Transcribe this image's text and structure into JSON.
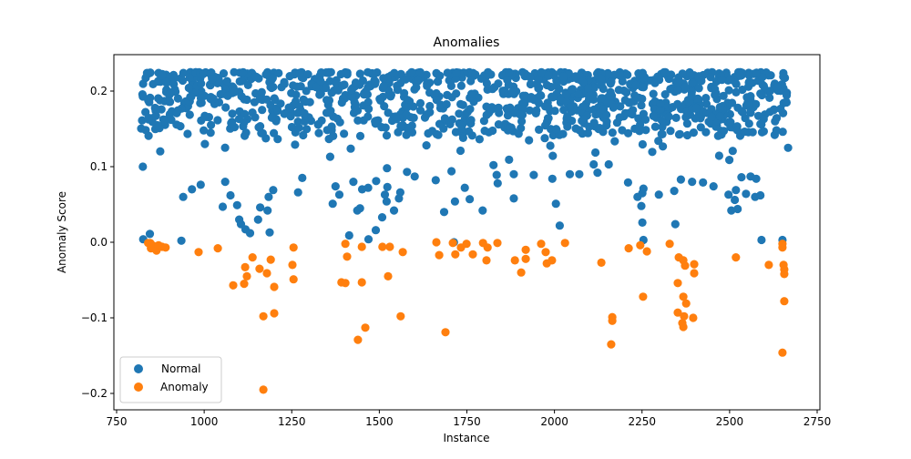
{
  "chart_data": {
    "type": "scatter",
    "title": "Anomalies",
    "xlabel": "Instance",
    "ylabel": "Anomaly Score",
    "xlim": [
      722,
      2763
    ],
    "ylim": [
      -0.221,
      0.248
    ],
    "xticks": [
      750,
      1000,
      1250,
      1500,
      1750,
      2000,
      2250,
      2500,
      2750
    ],
    "yticks": [
      -0.2,
      -0.1,
      0.0,
      0.1,
      0.2
    ],
    "ytick_labels": [
      "−0.2",
      "−0.1",
      "0.0",
      "0.1",
      "0.2"
    ],
    "grid": false,
    "legend": {
      "position": "lower left",
      "entries": [
        "Normal",
        "Anomaly"
      ]
    },
    "series": [
      {
        "name": "Normal",
        "color": "#1f77b4",
        "dense_band": {
          "x_range": [
            820,
            2665
          ],
          "y_range": [
            0.14,
            0.225
          ],
          "count": 1100,
          "seed": 7
        },
        "points": [
          [
            825,
            0.1
          ],
          [
            826,
            0.004
          ],
          [
            845,
            0.011
          ],
          [
            940,
            0.06
          ],
          [
            935,
            0.002
          ],
          [
            965,
            0.07
          ],
          [
            990,
            0.076
          ],
          [
            1002,
            0.13
          ],
          [
            1053,
            0.047
          ],
          [
            1060,
            0.08
          ],
          [
            1075,
            0.062
          ],
          [
            1094,
            0.049
          ],
          [
            1100,
            0.03
          ],
          [
            1105,
            0.024
          ],
          [
            1118,
            0.017
          ],
          [
            1131,
            0.012
          ],
          [
            1154,
            0.03
          ],
          [
            1160,
            0.046
          ],
          [
            1181,
            0.042
          ],
          [
            1187,
            0.013
          ],
          [
            1184,
            0.06
          ],
          [
            1197,
            0.069
          ],
          [
            1268,
            0.066
          ],
          [
            1280,
            0.085
          ],
          [
            1367,
            0.051
          ],
          [
            1386,
            0.063
          ],
          [
            1375,
            0.074
          ],
          [
            1445,
            0.045
          ],
          [
            1437,
            0.042
          ],
          [
            1426,
            0.08
          ],
          [
            1414,
            0.009
          ],
          [
            1469,
            0.004
          ],
          [
            1490,
            0.016
          ],
          [
            1508,
            0.033
          ],
          [
            1521,
            0.054
          ],
          [
            1516,
            0.063
          ],
          [
            1523,
            0.073
          ],
          [
            1468,
            0.072
          ],
          [
            1451,
            0.07
          ],
          [
            1491,
            0.081
          ],
          [
            1522,
            0.098
          ],
          [
            1560,
            0.066
          ],
          [
            1542,
            0.042
          ],
          [
            1556,
            0.058
          ],
          [
            1579,
            0.093
          ],
          [
            1601,
            0.087
          ],
          [
            1661,
            0.082
          ],
          [
            1685,
            0.04
          ],
          [
            1706,
            0.094
          ],
          [
            1713,
            0.0
          ],
          [
            1716,
            0.054
          ],
          [
            1744,
            0.072
          ],
          [
            1758,
            0.057
          ],
          [
            1795,
            0.042
          ],
          [
            1838,
            0.078
          ],
          [
            1835,
            0.089
          ],
          [
            1826,
            0.102
          ],
          [
            1884,
            0.058
          ],
          [
            1884,
            0.09
          ],
          [
            1941,
            0.089
          ],
          [
            1994,
            0.084
          ],
          [
            2004,
            0.051
          ],
          [
            2015,
            0.022
          ],
          [
            2044,
            0.09
          ],
          [
            2071,
            0.09
          ],
          [
            2112,
            0.103
          ],
          [
            2123,
            0.092
          ],
          [
            2155,
            0.103
          ],
          [
            2210,
            0.079
          ],
          [
            2237,
            0.06
          ],
          [
            2251,
            0.065
          ],
          [
            2254,
            0.071
          ],
          [
            2248,
            0.048
          ],
          [
            2251,
            0.026
          ],
          [
            2254,
            0.003
          ],
          [
            2298,
            0.063
          ],
          [
            2342,
            0.068
          ],
          [
            2345,
            0.024
          ],
          [
            2361,
            0.083
          ],
          [
            2393,
            0.08
          ],
          [
            2424,
            0.079
          ],
          [
            2454,
            0.074
          ],
          [
            2515,
            0.056
          ],
          [
            2497,
            0.063
          ],
          [
            2518,
            0.069
          ],
          [
            2505,
            0.042
          ],
          [
            2523,
            0.044
          ],
          [
            2560,
            0.087
          ],
          [
            2573,
            0.06
          ],
          [
            2576,
            0.084
          ],
          [
            2591,
            0.003
          ],
          [
            2651,
            0.003
          ],
          [
            2667,
            0.125
          ],
          [
            2534,
            0.086
          ],
          [
            2547,
            0.064
          ],
          [
            2588,
            0.062
          ]
        ]
      },
      {
        "name": "Anomaly",
        "color": "#ff7f0e",
        "points": [
          [
            840,
            -0.001
          ],
          [
            846,
            -0.001
          ],
          [
            848,
            -0.008
          ],
          [
            852,
            -0.004
          ],
          [
            856,
            -0.006
          ],
          [
            864,
            -0.011
          ],
          [
            870,
            -0.004
          ],
          [
            880,
            -0.006
          ],
          [
            890,
            -0.007
          ],
          [
            984,
            -0.013
          ],
          [
            1039,
            -0.008
          ],
          [
            1138,
            -0.02
          ],
          [
            1117,
            -0.033
          ],
          [
            1122,
            -0.045
          ],
          [
            1158,
            -0.035
          ],
          [
            1179,
            -0.041
          ],
          [
            1190,
            -0.023
          ],
          [
            1083,
            -0.057
          ],
          [
            1114,
            -0.055
          ],
          [
            1200,
            -0.059
          ],
          [
            1255,
            -0.007
          ],
          [
            1252,
            -0.03
          ],
          [
            1255,
            -0.049
          ],
          [
            1169,
            -0.098
          ],
          [
            1200,
            -0.094
          ],
          [
            1169,
            -0.195
          ],
          [
            1403,
            -0.002
          ],
          [
            1408,
            -0.019
          ],
          [
            1450,
            -0.006
          ],
          [
            1509,
            -0.006
          ],
          [
            1530,
            -0.006
          ],
          [
            1567,
            -0.013
          ],
          [
            1392,
            -0.053
          ],
          [
            1403,
            -0.054
          ],
          [
            1450,
            -0.053
          ],
          [
            1525,
            -0.045
          ],
          [
            1561,
            -0.098
          ],
          [
            1460,
            -0.113
          ],
          [
            1439,
            -0.129
          ],
          [
            1663,
            0.0
          ],
          [
            1671,
            -0.017
          ],
          [
            1710,
            -0.001
          ],
          [
            1717,
            -0.016
          ],
          [
            1733,
            -0.007
          ],
          [
            1749,
            -0.002
          ],
          [
            1767,
            -0.016
          ],
          [
            1796,
            -0.001
          ],
          [
            1809,
            -0.007
          ],
          [
            1806,
            -0.024
          ],
          [
            1837,
            -0.001
          ],
          [
            1887,
            -0.024
          ],
          [
            1905,
            -0.04
          ],
          [
            1918,
            -0.01
          ],
          [
            1918,
            -0.022
          ],
          [
            1689,
            -0.119
          ],
          [
            1962,
            -0.002
          ],
          [
            1975,
            -0.013
          ],
          [
            1978,
            -0.028
          ],
          [
            1993,
            -0.024
          ],
          [
            2030,
            -0.001
          ],
          [
            2134,
            -0.027
          ],
          [
            2212,
            -0.008
          ],
          [
            2245,
            -0.004
          ],
          [
            2264,
            -0.012
          ],
          [
            2253,
            -0.072
          ],
          [
            2165,
            -0.099
          ],
          [
            2165,
            -0.104
          ],
          [
            2162,
            -0.135
          ],
          [
            2329,
            -0.002
          ],
          [
            2355,
            -0.02
          ],
          [
            2368,
            -0.024
          ],
          [
            2373,
            -0.031
          ],
          [
            2352,
            -0.054
          ],
          [
            2368,
            -0.072
          ],
          [
            2376,
            -0.081
          ],
          [
            2352,
            -0.093
          ],
          [
            2370,
            -0.098
          ],
          [
            2365,
            -0.107
          ],
          [
            2368,
            -0.112
          ],
          [
            2399,
            -0.029
          ],
          [
            2399,
            -0.041
          ],
          [
            2396,
            -0.1
          ],
          [
            2518,
            -0.02
          ],
          [
            2612,
            -0.03
          ],
          [
            2651,
            -0.002
          ],
          [
            2651,
            -0.007
          ],
          [
            2654,
            -0.03
          ],
          [
            2656,
            -0.036
          ],
          [
            2656,
            -0.042
          ],
          [
            2656,
            -0.078
          ],
          [
            2651,
            -0.146
          ]
        ]
      }
    ]
  }
}
